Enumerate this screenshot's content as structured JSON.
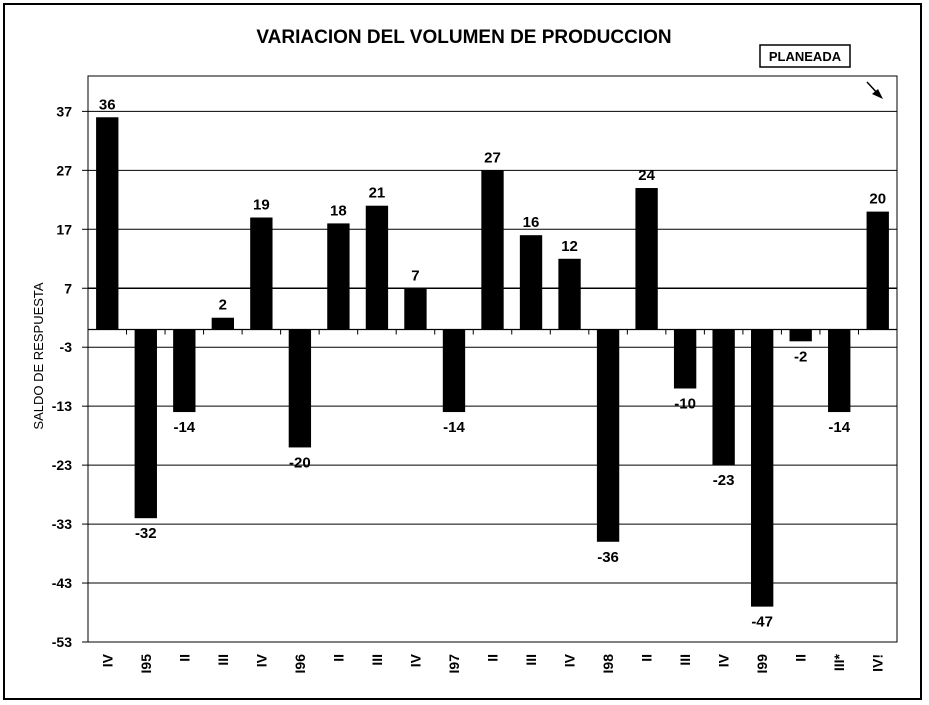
{
  "chart_data": {
    "type": "bar",
    "title": "VARIACION DEL VOLUMEN DE PRODUCCION",
    "ylabel": "SALDO DE RESPUESTA",
    "xlabel": "",
    "ylim": [
      -53,
      43
    ],
    "yticks": [
      37,
      27,
      17,
      7,
      -3,
      -13,
      -23,
      -33,
      -43,
      -53
    ],
    "grid": true,
    "legend": {
      "label": "PLANEADA",
      "placement": "top-right"
    },
    "categories": [
      "IV",
      "I95",
      "II",
      "III",
      "IV",
      "I96",
      "II",
      "III",
      "IV",
      "I97",
      "II",
      "III",
      "IV",
      "I98",
      "II",
      "III",
      "IV",
      "I99",
      "II",
      "III*",
      "IV!"
    ],
    "values": [
      36,
      -32,
      -14,
      2,
      19,
      -20,
      18,
      21,
      7,
      -14,
      27,
      16,
      12,
      -36,
      24,
      -10,
      -23,
      -47,
      -2,
      -14,
      20
    ],
    "bar_color": "#000000"
  }
}
